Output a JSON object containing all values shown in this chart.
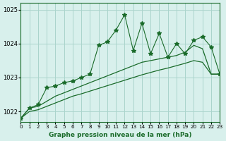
{
  "title": "Graphe pression niveau de la mer (hPa)",
  "xlabel": "Graphe pression niveau de la mer (hPa)",
  "ylim": [
    1021.7,
    1025.2
  ],
  "xlim": [
    0,
    23
  ],
  "yticks": [
    1022,
    1023,
    1024,
    1025
  ],
  "xticks": [
    0,
    1,
    2,
    3,
    4,
    5,
    6,
    7,
    8,
    9,
    10,
    11,
    12,
    13,
    14,
    15,
    16,
    17,
    18,
    19,
    20,
    21,
    22,
    23
  ],
  "bg_color": "#d8f0ec",
  "line_color_main": "#1a6b2a",
  "grid_color": "#aad4cc",
  "line1_x": [
    0,
    1,
    2,
    3,
    4,
    5,
    6,
    7,
    8,
    9,
    10,
    11,
    12,
    13,
    14,
    15,
    16,
    17,
    18,
    19,
    20,
    21,
    22,
    23
  ],
  "line1_y": [
    1021.8,
    1022.1,
    1022.2,
    1022.7,
    1022.75,
    1022.85,
    1022.9,
    1023.0,
    1023.1,
    1023.95,
    1024.05,
    1024.4,
    1024.85,
    1023.8,
    1024.6,
    1023.7,
    1024.3,
    1023.6,
    1024.0,
    1023.7,
    1024.1,
    1024.2,
    1023.9,
    1023.1
  ],
  "line2_x": [
    0,
    1,
    2,
    3,
    4,
    5,
    6,
    7,
    8,
    9,
    10,
    11,
    12,
    13,
    14,
    15,
    16,
    17,
    18,
    19,
    20,
    21,
    22,
    23
  ],
  "line2_y": [
    1021.8,
    1022.1,
    1022.15,
    1022.3,
    1022.45,
    1022.55,
    1022.65,
    1022.75,
    1022.85,
    1022.95,
    1023.05,
    1023.15,
    1023.25,
    1023.35,
    1023.45,
    1023.5,
    1023.55,
    1023.6,
    1023.65,
    1023.75,
    1023.95,
    1023.85,
    1023.1,
    1023.1
  ],
  "line3_x": [
    0,
    1,
    2,
    3,
    4,
    5,
    6,
    7,
    8,
    9,
    10,
    11,
    12,
    13,
    14,
    15,
    16,
    17,
    18,
    19,
    20,
    21,
    22,
    23
  ],
  "line3_y": [
    1021.8,
    1022.0,
    1022.05,
    1022.15,
    1022.25,
    1022.35,
    1022.45,
    1022.52,
    1022.6,
    1022.68,
    1022.76,
    1022.84,
    1022.92,
    1023.0,
    1023.08,
    1023.15,
    1023.22,
    1023.28,
    1023.35,
    1023.42,
    1023.5,
    1023.45,
    1023.1,
    1023.1
  ]
}
